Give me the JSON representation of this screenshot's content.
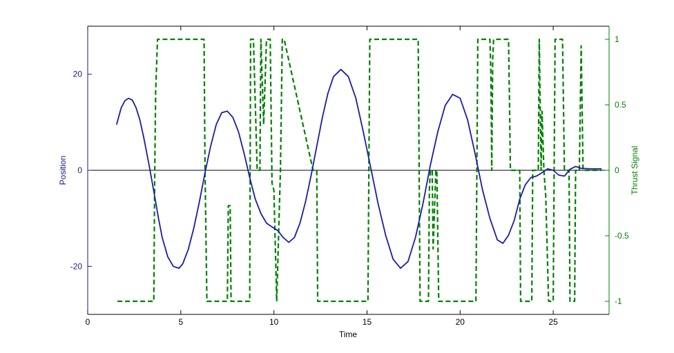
{
  "chart_data": {
    "type": "line",
    "title": "",
    "xlabel": "Time",
    "ylabel": "Position",
    "ylabel_right": "Thrust Signal",
    "xlim": [
      0,
      28
    ],
    "ylim": [
      -30,
      30
    ],
    "ylim_right": [
      -1.1,
      1.1
    ],
    "x_ticks": [
      "0",
      "5",
      "10",
      "15",
      "20",
      "25"
    ],
    "y_ticks": [
      "-20",
      "0",
      "20"
    ],
    "y_ticks_right": [
      "-1",
      "-0.5",
      "0",
      "0.5",
      "1"
    ],
    "colors": {
      "position": "#1a1aa8",
      "thrust": "#008000",
      "zero_line": "#000000",
      "left_axis": "#1a1a80",
      "right_axis": "#008000"
    },
    "series": [
      {
        "axis": "left",
        "style": "solid",
        "x": [
          1.55,
          1.8,
          2.0,
          2.2,
          2.4,
          2.6,
          2.8,
          3.0,
          3.3,
          3.6,
          3.8,
          4.0,
          4.3,
          4.6,
          4.9,
          5.1,
          5.4,
          5.7,
          6.0,
          6.3,
          6.6,
          6.9,
          7.2,
          7.5,
          7.8,
          8.1,
          8.4,
          8.7,
          9.0,
          9.3,
          9.6,
          9.9,
          10.2,
          10.5,
          10.8,
          11.1,
          11.4,
          11.7,
          12.0,
          12.3,
          12.6,
          12.9,
          13.2,
          13.6,
          14.0,
          14.4,
          14.8,
          15.2,
          15.6,
          16.0,
          16.4,
          16.8,
          17.2,
          17.6,
          18.0,
          18.4,
          18.8,
          19.2,
          19.6,
          20.0,
          20.4,
          20.8,
          21.2,
          21.6,
          22.0,
          22.3,
          22.6,
          22.9,
          23.2,
          23.5,
          23.8,
          24.1,
          24.4,
          24.7,
          25.0,
          25.3,
          25.6,
          25.9,
          26.2,
          26.5,
          27.0,
          27.6
        ],
        "y": [
          9.5,
          13.0,
          14.5,
          15.0,
          14.6,
          13.0,
          10.5,
          7.0,
          1.0,
          -5.5,
          -10.0,
          -14.0,
          -18.0,
          -20.0,
          -20.4,
          -19.5,
          -16.5,
          -12.0,
          -6.5,
          -0.5,
          5.0,
          9.5,
          12.0,
          12.3,
          11.0,
          8.0,
          3.5,
          -1.5,
          -6.0,
          -9.0,
          -11.0,
          -11.8,
          -12.5,
          -14.0,
          -15.0,
          -14.0,
          -11.0,
          -6.5,
          -1.0,
          5.0,
          11.0,
          16.0,
          19.5,
          21.0,
          19.5,
          15.0,
          8.0,
          0.5,
          -7.0,
          -13.5,
          -18.5,
          -20.4,
          -19.0,
          -14.0,
          -7.0,
          1.0,
          8.0,
          13.5,
          15.8,
          15.0,
          10.5,
          3.5,
          -4.0,
          -10.0,
          -14.5,
          -15.2,
          -13.5,
          -10.5,
          -6.0,
          -3.0,
          -1.5,
          -1.2,
          -0.5,
          0.3,
          0.0,
          -1.0,
          -1.2,
          0.2,
          0.8,
          0.4,
          0.3,
          0.3
        ]
      },
      {
        "axis": "right",
        "style": "dashed",
        "x": [
          1.6,
          3.55,
          3.6,
          3.65,
          3.75,
          6.25,
          6.3,
          6.4,
          7.5,
          7.55,
          7.65,
          7.7,
          8.7,
          8.75,
          8.9,
          9.1,
          9.25,
          9.3,
          9.45,
          9.6,
          9.8,
          9.9,
          10.0,
          10.15,
          10.25,
          10.35,
          10.45,
          10.55,
          12.1,
          12.3,
          12.35,
          15.05,
          15.15,
          17.75,
          17.85,
          18.3,
          18.35,
          18.4,
          18.5,
          18.55,
          18.7,
          18.75,
          18.85,
          20.85,
          20.95,
          21.6,
          21.65,
          21.7,
          21.75,
          21.8,
          22.6,
          22.65,
          22.7,
          23.2,
          23.25,
          23.85,
          23.9,
          24.2,
          24.25,
          24.35,
          24.4,
          24.5,
          24.6,
          24.75,
          25.0,
          25.1,
          25.5,
          25.6,
          25.85,
          25.9,
          26.15,
          26.2,
          26.3,
          26.4,
          26.5,
          26.6,
          26.65,
          27.6
        ],
        "y": [
          -1,
          -1,
          0.0,
          0.6,
          1,
          1,
          0.0,
          -1,
          -1,
          -0.27,
          -0.27,
          -1,
          -1,
          1,
          1,
          0.0,
          0.0,
          1,
          0.35,
          1,
          1,
          -0.1,
          -0.15,
          -1,
          -0.5,
          0.0,
          1,
          1,
          0.0,
          0.0,
          -1,
          -1,
          1,
          1,
          -1,
          -1,
          -0.15,
          0.0,
          0.0,
          -0.6,
          0.0,
          0.0,
          -1,
          -1,
          1,
          1,
          0.75,
          0.0,
          0.85,
          1,
          1,
          0.55,
          0.0,
          0.0,
          -1,
          -1,
          0.0,
          0.0,
          1,
          0.0,
          0.45,
          0.0,
          -0.2,
          -1,
          -1,
          1,
          1,
          0.0,
          0.0,
          -1,
          -1,
          0.0,
          0.0,
          0.0,
          0.95,
          0.0,
          0.0,
          0.0
        ]
      }
    ],
    "grid": false,
    "legend": "none"
  }
}
